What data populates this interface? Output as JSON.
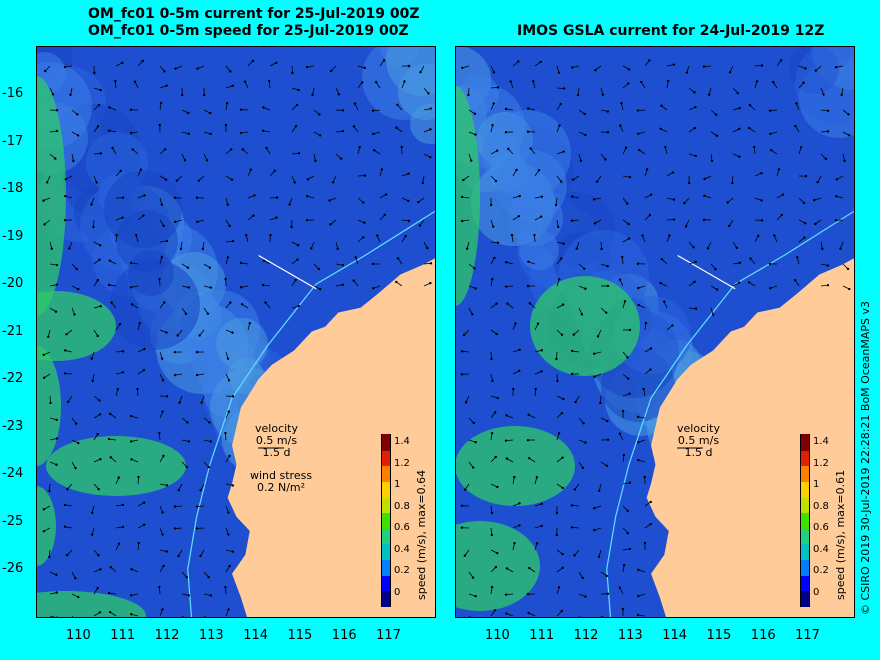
{
  "left_panel": {
    "title_line1": "OM_fc01 0-5m current for 25-Jul-2019 00Z",
    "title_line2": "OM_fc01 0-5m speed for 25-Jul-2019 00Z",
    "velocity_label": "velocity",
    "velocity_scale": "0.5 m/s",
    "velocity_time": "1.5 d",
    "wind_label": "wind stress",
    "wind_scale": "0.2 N/m²",
    "colorbar_label": "speed (m/s), max=0.64"
  },
  "right_panel": {
    "title": "IMOS GSLA current for 24-Jul-2019 12Z",
    "velocity_label": "velocity",
    "velocity_scale": "0.5 m/s",
    "velocity_time": "1.5 d",
    "colorbar_label": "speed (m/s), max=0.61"
  },
  "credit": "© CSIRO 2019   30-Jul-2019 22:28:21 BoM OceanMAPS v3",
  "axes": {
    "x_ticks": [
      "110",
      "111",
      "112",
      "113",
      "114",
      "115",
      "116",
      "117"
    ],
    "y_ticks": [
      "-16",
      "-17",
      "-18",
      "-19",
      "-20",
      "-21",
      "-22",
      "-23",
      "-24",
      "-25",
      "-26"
    ],
    "lon_range": [
      109,
      118
    ],
    "lat_range": [
      -27,
      -15.2
    ]
  },
  "colorbar": {
    "ticks": [
      "1.4",
      "1.2",
      "1",
      "0.8",
      "0.6",
      "0.4",
      "0.2",
      "0"
    ],
    "colors": [
      "#00008b",
      "#0000ff",
      "#0080ff",
      "#00c0c0",
      "#20d080",
      "#40e000",
      "#c0e000",
      "#ffd000",
      "#ff8000",
      "#e02000",
      "#800000"
    ]
  },
  "colors": {
    "background": "#00ffff",
    "land": "#ffcc99",
    "sea": "#1e4fd0",
    "arrow": "#000000",
    "shelf_line": "#60e0ff"
  }
}
